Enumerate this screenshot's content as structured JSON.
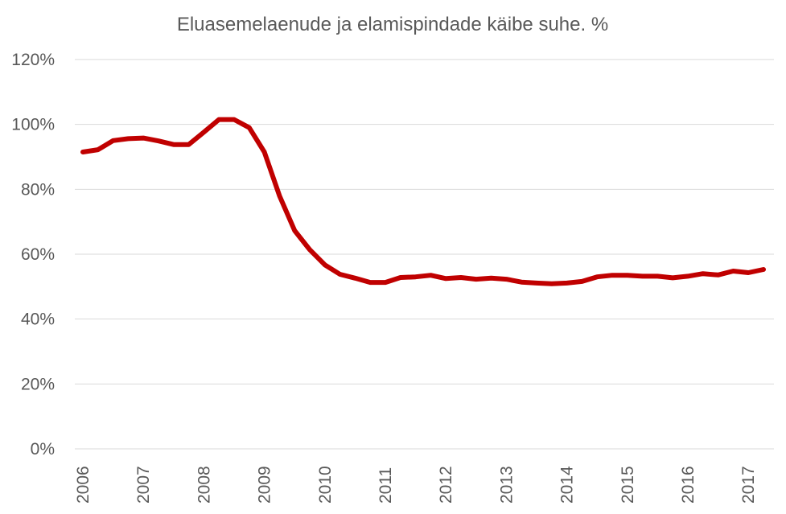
{
  "chart_data": {
    "type": "line",
    "title": "Eluasemelaenude ja elamispindade käibe suhe. %",
    "xlabel": "",
    "ylabel": "",
    "ylim": [
      0,
      120
    ],
    "y_ticks": [
      0,
      20,
      40,
      60,
      80,
      100,
      120
    ],
    "y_tick_labels": [
      "0%",
      "20%",
      "40%",
      "60%",
      "80%",
      "100%",
      "120%"
    ],
    "x_tick_labels": [
      "2006",
      "2007",
      "2008",
      "2009",
      "2010",
      "2011",
      "2012",
      "2013",
      "2014",
      "2015",
      "2016",
      "2017"
    ],
    "grid": true,
    "legend": "none",
    "series": [
      {
        "color": "#c00000",
        "x": [
          2006.0,
          2006.25,
          2006.5,
          2006.75,
          2007.0,
          2007.25,
          2007.5,
          2007.75,
          2008.0,
          2008.25,
          2008.5,
          2008.75,
          2009.0,
          2009.25,
          2009.5,
          2009.75,
          2010.0,
          2010.25,
          2010.5,
          2010.75,
          2011.0,
          2011.25,
          2011.5,
          2011.75,
          2012.0,
          2012.25,
          2012.5,
          2012.75,
          2013.0,
          2013.25,
          2013.5,
          2013.75,
          2014.0,
          2014.25,
          2014.5,
          2014.75,
          2015.0,
          2015.25,
          2015.5,
          2015.75,
          2016.0,
          2016.25,
          2016.5,
          2016.75,
          2017.0,
          2017.25
        ],
        "values": [
          91.5,
          92.2,
          95.0,
          95.6,
          95.8,
          94.9,
          93.8,
          93.8,
          97.6,
          101.5,
          101.5,
          99.0,
          91.5,
          78.0,
          67.3,
          61.4,
          56.7,
          53.8,
          52.6,
          51.3,
          51.3,
          52.8,
          53.0,
          53.5,
          52.5,
          52.8,
          52.3,
          52.6,
          52.3,
          51.4,
          51.1,
          50.9,
          51.1,
          51.6,
          53.0,
          53.5,
          53.5,
          53.2,
          53.2,
          52.7,
          53.2,
          54.0,
          53.6,
          54.8,
          54.3,
          55.3
        ]
      }
    ]
  }
}
